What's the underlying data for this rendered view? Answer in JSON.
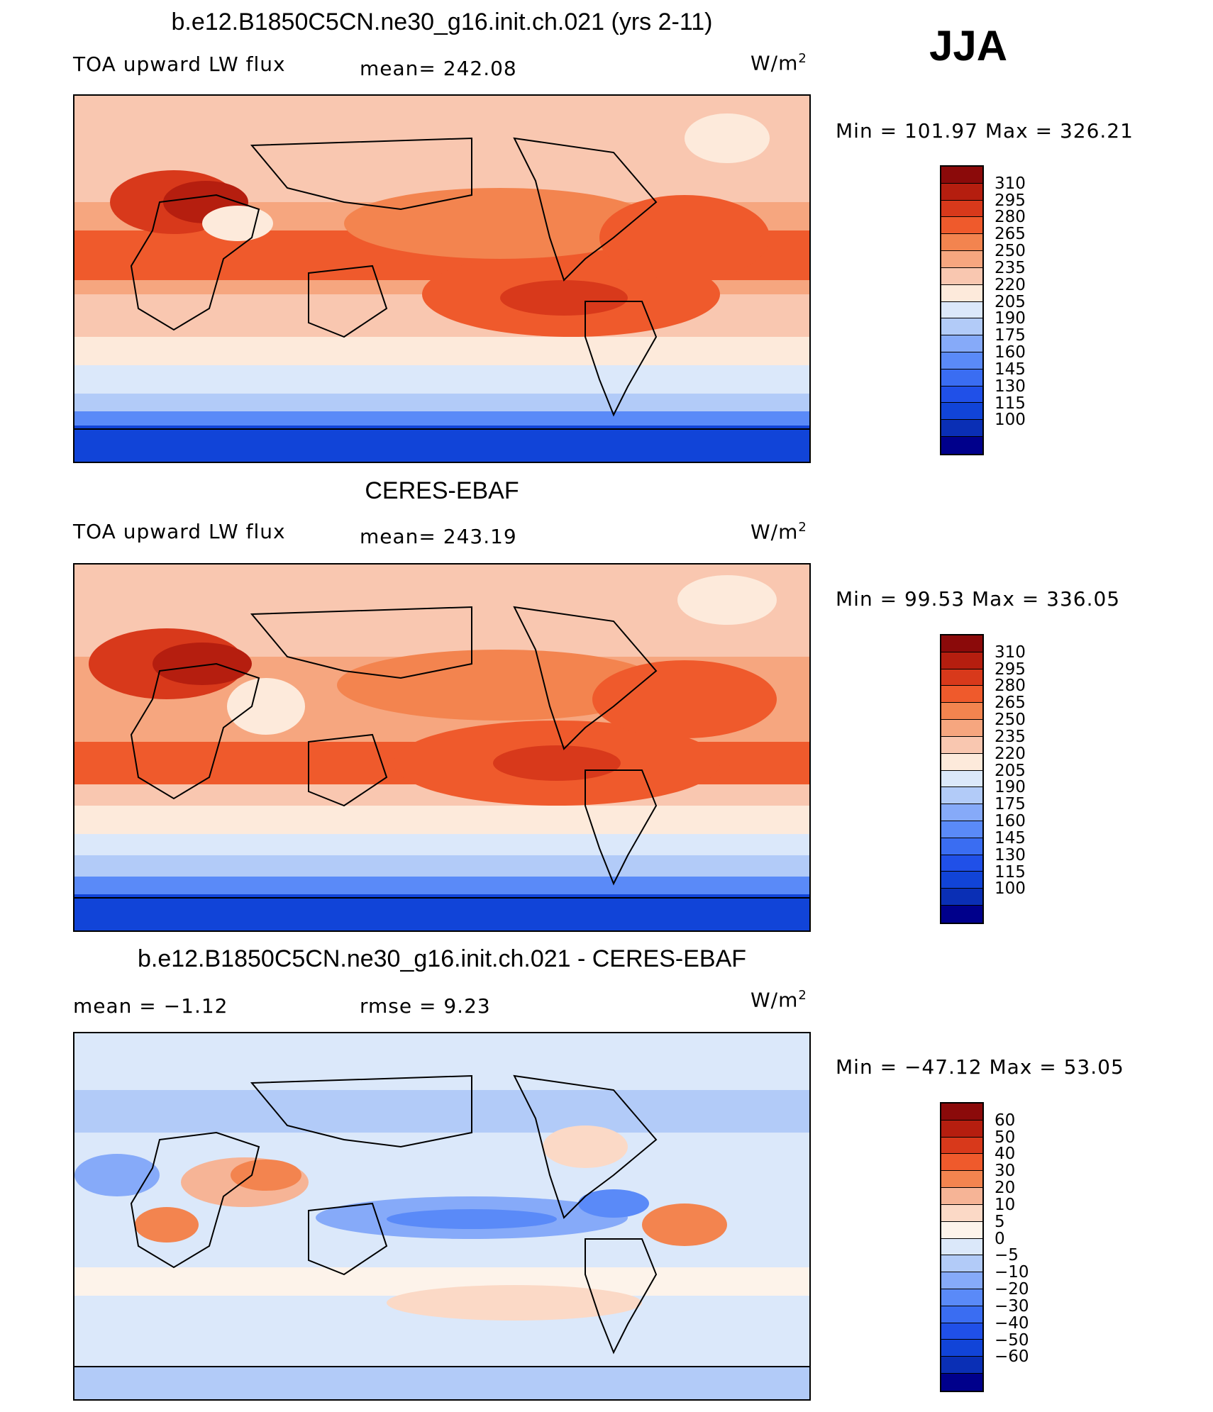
{
  "season": "JJA",
  "colorbar_colors": {
    "absolute": [
      "#00008b",
      "#0a2fb5",
      "#1144d8",
      "#2050e8",
      "#3a6df2",
      "#5a8af8",
      "#86aaf9",
      "#b2cbf8",
      "#dbe8fa",
      "#fdeadb",
      "#f9c7b0",
      "#f6a67f",
      "#f3844f",
      "#ef5a2c",
      "#d8391b",
      "#b51e0f",
      "#8b0a0a"
    ],
    "difference": [
      "#00008b",
      "#0a2fb5",
      "#1144d8",
      "#2050e8",
      "#3a6df2",
      "#5a8af8",
      "#86aaf9",
      "#b2cbf8",
      "#dbe8fa",
      "#fdf3ea",
      "#fbd9c6",
      "#f6b496",
      "#f3844f",
      "#ef5a2c",
      "#d8391b",
      "#b51e0f",
      "#8b0a0a"
    ]
  },
  "chart_data": [
    {
      "type": "heatmap",
      "title": "b.e12.B1850C5CN.ne30_g16.init.ch.021 (yrs 2-11)",
      "left_label": "TOA upward LW flux",
      "center_label": "mean=  242.08",
      "mean": 242.08,
      "units": "W/m",
      "units_exp": "2",
      "min_max_text": "Min  =  101.97  Max  =  326.21",
      "min": 101.97,
      "max": 326.21,
      "colorbar_labels": [
        "310",
        "295",
        "280",
        "265",
        "250",
        "235",
        "220",
        "205",
        "190",
        "175",
        "160",
        "145",
        "130",
        "115",
        "100"
      ],
      "colorbar_levels": [
        100,
        115,
        130,
        145,
        160,
        175,
        190,
        205,
        220,
        235,
        250,
        265,
        280,
        295,
        310
      ]
    },
    {
      "type": "heatmap",
      "title": "CERES-EBAF",
      "left_label": "TOA upward LW flux",
      "center_label": "mean=  243.19",
      "mean": 243.19,
      "units": "W/m",
      "units_exp": "2",
      "min_max_text": "Min  =    99.53  Max  =  336.05",
      "min": 99.53,
      "max": 336.05,
      "colorbar_labels": [
        "310",
        "295",
        "280",
        "265",
        "250",
        "235",
        "220",
        "205",
        "190",
        "175",
        "160",
        "145",
        "130",
        "115",
        "100"
      ],
      "colorbar_levels": [
        100,
        115,
        130,
        145,
        160,
        175,
        190,
        205,
        220,
        235,
        250,
        265,
        280,
        295,
        310
      ]
    },
    {
      "type": "heatmap",
      "title": "b.e12.B1850C5CN.ne30_g16.init.ch.021 - CERES-EBAF",
      "left_label": "mean =    −1.12",
      "center_label": "rmse =      9.23",
      "mean": -1.12,
      "rmse": 9.23,
      "units": "W/m",
      "units_exp": "2",
      "min_max_text": "Min  =  −47.12  Max  =    53.05",
      "min": -47.12,
      "max": 53.05,
      "colorbar_labels": [
        "60",
        "50",
        "40",
        "30",
        "20",
        "10",
        "5",
        "0",
        "−5",
        "−10",
        "−20",
        "−30",
        "−40",
        "−50",
        "−60"
      ],
      "colorbar_levels": [
        -60,
        -50,
        -40,
        -30,
        -20,
        -10,
        -5,
        0,
        5,
        10,
        20,
        30,
        40,
        50,
        60
      ]
    }
  ]
}
